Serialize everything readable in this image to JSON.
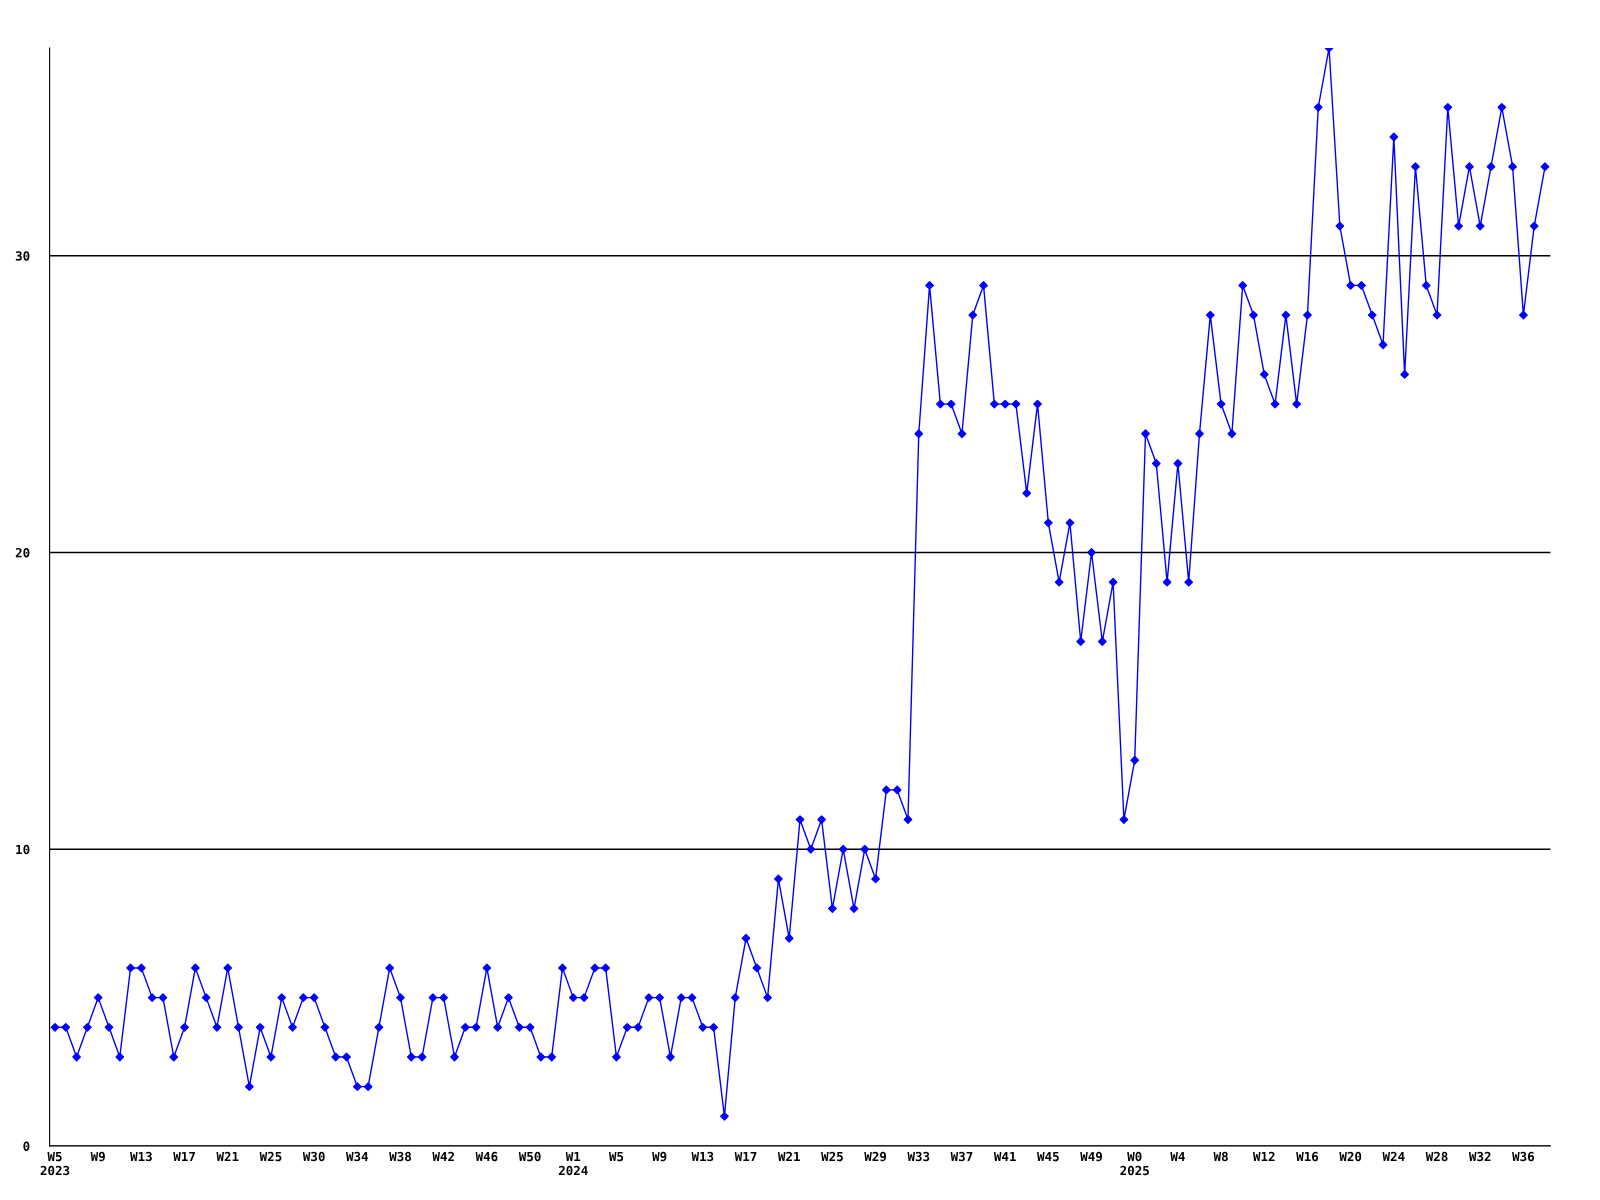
{
  "chart_data": {
    "type": "line",
    "categories": [
      "W5\n2023",
      null,
      null,
      null,
      "W9",
      null,
      null,
      null,
      "W13",
      null,
      null,
      null,
      "W17",
      null,
      null,
      null,
      "W21",
      null,
      null,
      null,
      "W25",
      null,
      null,
      null,
      "W30",
      null,
      null,
      null,
      "W34",
      null,
      null,
      null,
      "W38",
      null,
      null,
      null,
      "W42",
      null,
      null,
      null,
      "W46",
      null,
      null,
      null,
      "W50",
      null,
      null,
      null,
      "W1\n2024",
      null,
      null,
      null,
      "W5",
      null,
      null,
      null,
      "W9",
      null,
      null,
      null,
      "W13",
      null,
      null,
      null,
      "W17",
      null,
      null,
      null,
      "W21",
      null,
      null,
      null,
      "W25",
      null,
      null,
      null,
      "W29",
      null,
      null,
      null,
      "W33",
      null,
      null,
      null,
      "W37",
      null,
      null,
      null,
      "W41",
      null,
      null,
      null,
      "W45",
      null,
      null,
      null,
      "W49",
      null,
      null,
      null,
      "W0\n2025",
      null,
      null,
      null,
      "W4",
      null,
      null,
      null,
      "W8",
      null,
      null,
      null,
      "W12",
      null,
      null,
      null,
      "W16",
      null,
      null,
      null,
      "W20",
      null,
      null,
      null,
      "W24",
      null,
      null,
      null,
      "W28",
      null,
      null,
      null,
      "W32",
      null,
      null,
      null,
      "W36",
      null,
      null
    ],
    "series": [
      {
        "color": "#0000ff",
        "values": [
          4,
          4,
          3,
          4,
          5,
          4,
          3,
          6,
          6,
          5,
          5,
          3,
          4,
          6,
          5,
          4,
          6,
          4,
          2,
          4,
          3,
          5,
          4,
          5,
          5,
          4,
          3,
          3,
          2,
          2,
          4,
          6,
          5,
          3,
          3,
          5,
          5,
          3,
          4,
          4,
          6,
          4,
          5,
          4,
          4,
          3,
          3,
          6,
          5,
          5,
          6,
          6,
          3,
          4,
          4,
          5,
          5,
          3,
          5,
          5,
          4,
          4,
          1,
          5,
          7,
          6,
          5,
          9,
          7,
          11,
          10,
          11,
          8,
          10,
          8,
          10,
          9,
          12,
          12,
          11,
          24,
          29,
          25,
          25,
          24,
          28,
          29,
          25,
          25,
          25,
          22,
          25,
          21,
          19,
          21,
          17,
          20,
          17,
          19,
          11,
          13,
          24,
          23,
          19,
          23,
          19,
          24,
          28,
          25,
          24,
          29,
          28,
          26,
          25,
          28,
          25,
          28,
          35,
          37,
          31,
          29,
          29,
          28,
          27,
          34,
          26,
          33,
          29,
          28,
          35,
          31,
          33,
          31,
          33,
          35,
          33,
          28,
          31,
          33
        ]
      }
    ],
    "ylim": [
      0,
      37
    ],
    "yticks": [
      0,
      10,
      20,
      30
    ],
    "grid": "y",
    "marker": "diamond",
    "line_style": "solid"
  }
}
